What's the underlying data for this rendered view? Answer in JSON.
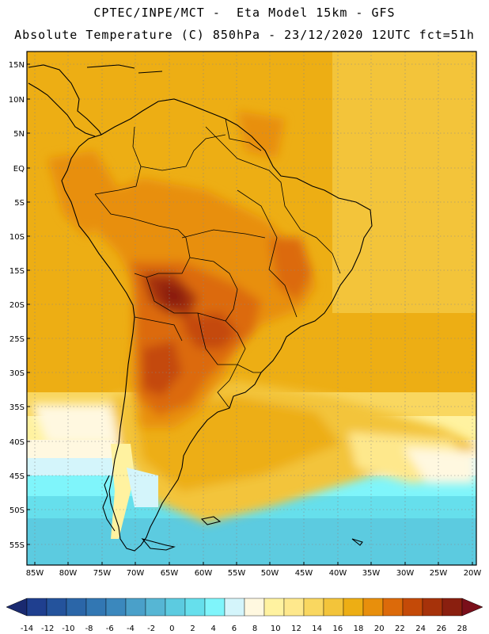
{
  "header": {
    "line1": "CPTEC/INPE/MCT -  Eta Model 15km - GFS",
    "line2": "Absolute Temperature (C) 850hPa - 23/12/2020 12UTC fct=51h"
  },
  "map": {
    "lat_labels": [
      "15N",
      "10N",
      "5N",
      "EQ",
      "5S",
      "10S",
      "15S",
      "20S",
      "25S",
      "30S",
      "35S",
      "40S",
      "45S",
      "50S",
      "55S"
    ],
    "lon_labels": [
      "85W",
      "80W",
      "75W",
      "70W",
      "65W",
      "60W",
      "55W",
      "50W",
      "45W",
      "40W",
      "35W",
      "30W",
      "25W",
      "20W"
    ]
  },
  "colorbar": {
    "labels": [
      "-14",
      "-12",
      "-10",
      "-8",
      "-6",
      "-4",
      "-2",
      "0",
      "2",
      "4",
      "6",
      "8",
      "10",
      "12",
      "14",
      "16",
      "18",
      "20",
      "22",
      "24",
      "26",
      "28"
    ],
    "colors": [
      "#1f3f8f",
      "#24539c",
      "#2b66a8",
      "#3277b3",
      "#3b88bd",
      "#4aa0c9",
      "#56b6d4",
      "#5ccbe0",
      "#66dfec",
      "#7ff5fb",
      "#d4f5fb",
      "#fff8e0",
      "#fff2a0",
      "#fee88c",
      "#f9d760",
      "#f3c43a",
      "#edae14",
      "#e88f0c",
      "#dc6a0a",
      "#c44a08",
      "#a6320a",
      "#8a1f0f"
    ],
    "left_arrow_color": "#1a2a70",
    "right_arrow_color": "#7a0f1a"
  }
}
